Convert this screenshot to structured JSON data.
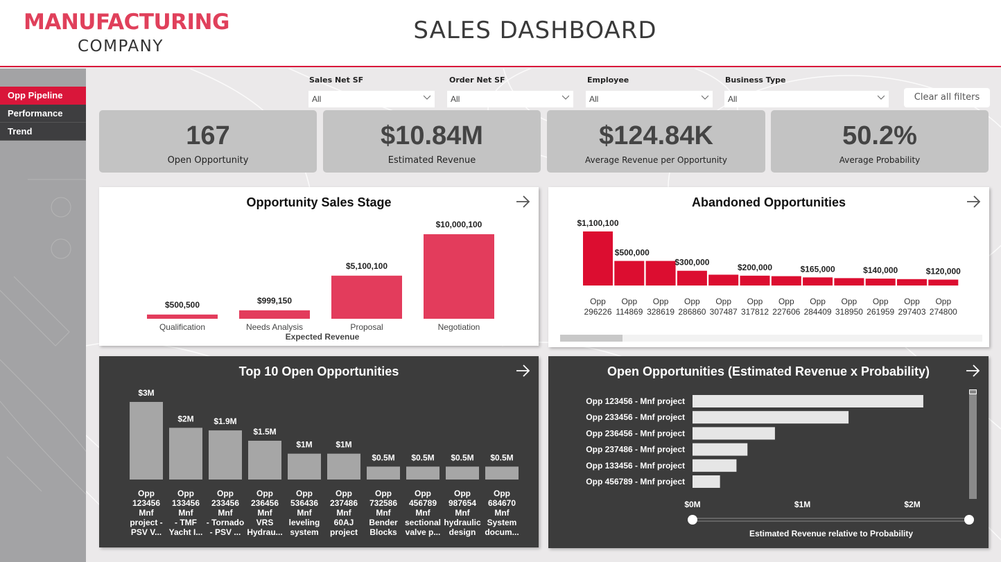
{
  "header": {
    "logo_main": "MANUFACTURING",
    "logo_sub": "COMPANY",
    "title": "SALES DASHBOARD"
  },
  "colors": {
    "brand_red": "#d9163a",
    "logo_red": "#e0405b",
    "stage_bar": "#e33c5c",
    "abandoned_bar": "#dc0d30",
    "top10_bar": "#a6a6a6",
    "hbar": "#e6e6e6"
  },
  "sidebar": {
    "items": [
      {
        "label": "Opp Pipeline",
        "active": true
      },
      {
        "label": "Performance",
        "active": false
      },
      {
        "label": "Trend",
        "active": false
      }
    ]
  },
  "filters": [
    {
      "label": "Sales Net SF",
      "value": "All"
    },
    {
      "label": "Order Net SF",
      "value": "All"
    },
    {
      "label": "Employee",
      "value": "All"
    },
    {
      "label": "Business Type",
      "value": "All"
    }
  ],
  "clear_filters_label": "Clear all filters",
  "kpis": [
    {
      "value": "167",
      "label": "Open Opportunity"
    },
    {
      "value": "$10.84M",
      "label": "Estimated Revenue"
    },
    {
      "value": "$124.84K",
      "label": "Average Revenue per Opportunity"
    },
    {
      "value": "50.2%",
      "label": "Average Probability"
    }
  ],
  "chart_data": [
    {
      "type": "bar",
      "title": "Opportunity Sales Stage",
      "xlabel": "Expected Revenue",
      "ylabel": "",
      "categories": [
        "Qualification",
        "Needs Analysis",
        "Proposal",
        "Negotiation"
      ],
      "values": [
        500500,
        999150,
        5100100,
        10000100
      ],
      "data_labels": [
        "$500,500",
        "$999,150",
        "$5,100,100",
        "$10,000,100"
      ],
      "ylim": [
        0,
        10000100
      ]
    },
    {
      "type": "bar",
      "title": "Abandoned Opportunities",
      "categories": [
        "Opp 296226",
        "Opp 114869",
        "Opp 328619",
        "Opp 286860",
        "Opp 307487",
        "Opp 317812",
        "Opp 227606",
        "Opp 284409",
        "Opp 318950",
        "Opp 261959",
        "Opp 297403",
        "Opp 274800"
      ],
      "values": [
        1100100,
        500000,
        500000,
        300000,
        220000,
        200000,
        190000,
        165000,
        150000,
        140000,
        130000,
        120000
      ],
      "data_labels": [
        "$1,100,100",
        "$500,000",
        "",
        "$300,000",
        "",
        "$200,000",
        "",
        "$165,000",
        "",
        "$140,000",
        "",
        "$120,000"
      ],
      "ylim": [
        0,
        1100100
      ],
      "scroll_position": 0.15
    },
    {
      "type": "bar",
      "title": "Top 10 Open Opportunities",
      "categories": [
        [
          "Opp",
          "123456",
          "Mnf",
          "project -",
          "PSV V..."
        ],
        [
          "Opp",
          "133456",
          "Mnf",
          "- TMF",
          "Yacht I..."
        ],
        [
          "Opp",
          "233456",
          "Mnf",
          "- Tornado",
          "- PSV ..."
        ],
        [
          "Opp",
          "236456",
          "Mnf",
          "VRS",
          "Hydrau..."
        ],
        [
          "Opp",
          "536436",
          "Mnf",
          "leveling",
          "system"
        ],
        [
          "Opp",
          "237486",
          "Mnf",
          "60AJ",
          "project"
        ],
        [
          "Opp",
          "732586",
          "Mnf",
          "Bender",
          "Blocks"
        ],
        [
          "Opp",
          "456789",
          "Mnf",
          "sectional",
          "valve p..."
        ],
        [
          "Opp",
          "987654",
          "Mnf",
          "hydraulic",
          "design"
        ],
        [
          "Opp",
          "684670",
          "Mnf",
          "System",
          "docum..."
        ]
      ],
      "values": [
        3000000,
        2000000,
        1900000,
        1500000,
        1000000,
        1000000,
        500000,
        500000,
        500000,
        500000
      ],
      "data_labels": [
        "$3M",
        "$2M",
        "$1.9M",
        "$1.5M",
        "$1M",
        "$1M",
        "$0.5M",
        "$0.5M",
        "$0.5M",
        "$0.5M"
      ],
      "ylim": [
        0,
        3000000
      ]
    },
    {
      "type": "bar",
      "orientation": "horizontal",
      "title": "Open Opportunities (Estimated Revenue x Probability)",
      "xlabel": "Estimated Revenue relative to Probability",
      "categories": [
        "Opp 123456 - Mnf project",
        "Opp 233456 - Mnf project",
        "Opp 236456 - Mnf project",
        "Opp 237486 - Mnf project",
        "Opp 133456 - Mnf project",
        "Opp 456789 - Mnf project"
      ],
      "values": [
        2100000,
        1420000,
        750000,
        500000,
        400000,
        250000
      ],
      "xticks": [
        "$0M",
        "$1M",
        "$2M"
      ],
      "xtick_values": [
        0,
        1000000,
        2000000
      ],
      "xlim": [
        0,
        2580000
      ],
      "range_slider": [
        0,
        1
      ]
    }
  ]
}
